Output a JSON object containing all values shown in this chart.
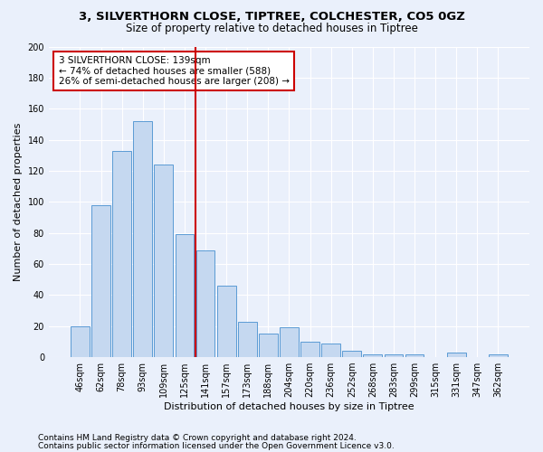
{
  "title": "3, SILVERTHORN CLOSE, TIPTREE, COLCHESTER, CO5 0GZ",
  "subtitle": "Size of property relative to detached houses in Tiptree",
  "xlabel": "Distribution of detached houses by size in Tiptree",
  "ylabel": "Number of detached properties",
  "categories": [
    "46sqm",
    "62sqm",
    "78sqm",
    "93sqm",
    "109sqm",
    "125sqm",
    "141sqm",
    "157sqm",
    "173sqm",
    "188sqm",
    "204sqm",
    "220sqm",
    "236sqm",
    "252sqm",
    "268sqm",
    "283sqm",
    "299sqm",
    "315sqm",
    "331sqm",
    "347sqm",
    "362sqm"
  ],
  "values": [
    20,
    98,
    133,
    152,
    124,
    79,
    69,
    46,
    23,
    15,
    19,
    10,
    9,
    4,
    2,
    2,
    2,
    0,
    3,
    0,
    2
  ],
  "bar_color": "#c5d8f0",
  "bar_edge_color": "#5b9bd5",
  "annotation_text": "3 SILVERTHORN CLOSE: 139sqm\n← 74% of detached houses are smaller (588)\n26% of semi-detached houses are larger (208) →",
  "annotation_box_color": "white",
  "annotation_box_edge_color": "#cc0000",
  "vline_color": "#cc0000",
  "vline_x": 5.5,
  "ylim": [
    0,
    200
  ],
  "yticks": [
    0,
    20,
    40,
    60,
    80,
    100,
    120,
    140,
    160,
    180,
    200
  ],
  "bg_color": "#eaf0fb",
  "plot_bg_color": "#eaf0fb",
  "grid_color": "#ffffff",
  "footer_line1": "Contains HM Land Registry data © Crown copyright and database right 2024.",
  "footer_line2": "Contains public sector information licensed under the Open Government Licence v3.0.",
  "title_fontsize": 9.5,
  "subtitle_fontsize": 8.5,
  "axis_label_fontsize": 8,
  "tick_fontsize": 7,
  "annotation_fontsize": 7.5,
  "footer_fontsize": 6.5
}
